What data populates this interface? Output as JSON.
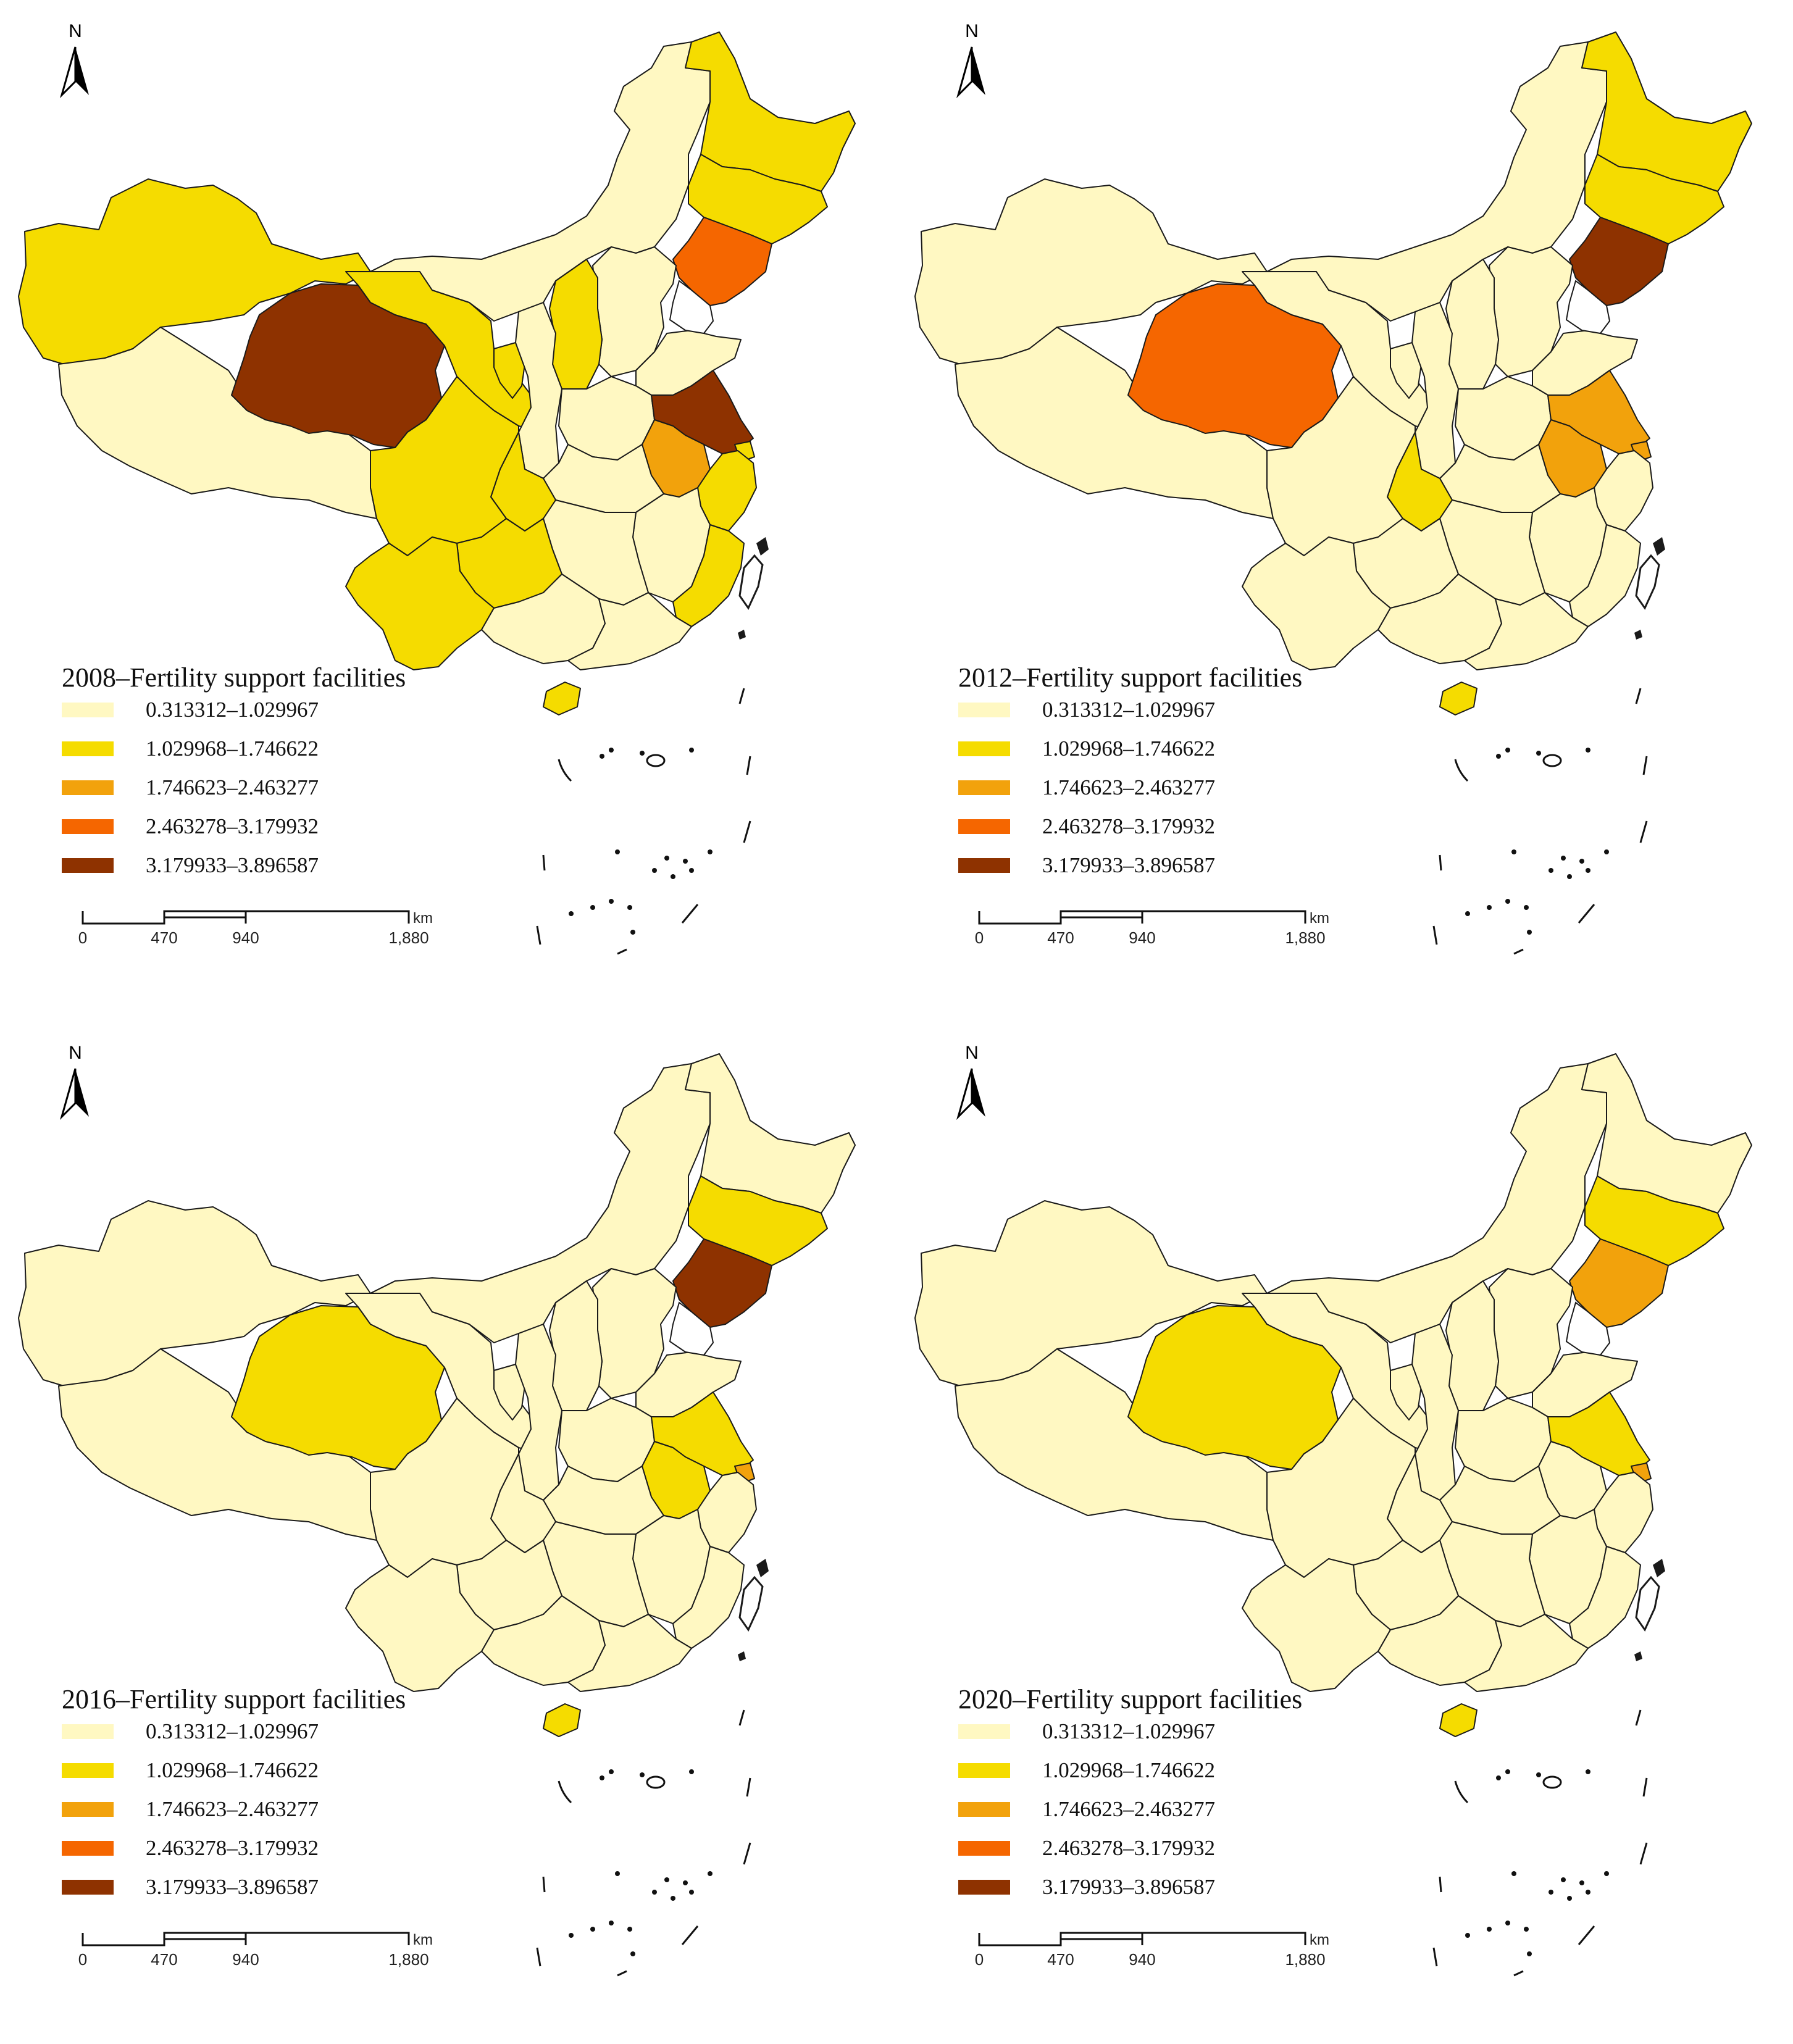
{
  "panels": [
    {
      "title": "2008–Fertility support facilities",
      "classes": {
        "xj": 1,
        "xz": 0,
        "qh": 4,
        "gs": 1,
        "nmg": 0,
        "hlj": 1,
        "jl": 1,
        "ln": 3,
        "sc": 1,
        "yn": 1,
        "cq": 1,
        "gz": 1,
        "sd": 0,
        "js": 4,
        "ah": 2,
        "zj": 1,
        "fj": 1,
        "gd": 0,
        "gx": 0,
        "hn": 1,
        "hb": 0,
        "hun": 0,
        "jx": 0,
        "sx": 1,
        "sn": 0,
        "nx": 1,
        "hen": 0,
        "heb": 0,
        "bj": 1,
        "tj": 0,
        "sh": 1
      }
    },
    {
      "title": "2012–Fertility support facilities",
      "classes": {
        "xj": 0,
        "xz": 0,
        "qh": 3,
        "gs": 0,
        "nmg": 0,
        "hlj": 1,
        "jl": 1,
        "ln": 4,
        "sc": 0,
        "yn": 0,
        "cq": 1,
        "gz": 0,
        "sd": 0,
        "js": 2,
        "ah": 2,
        "zj": 0,
        "fj": 0,
        "gd": 0,
        "gx": 0,
        "hn": 1,
        "hb": 0,
        "hun": 0,
        "jx": 0,
        "sx": 0,
        "sn": 0,
        "nx": 0,
        "hen": 0,
        "heb": 0,
        "bj": 1,
        "tj": 2,
        "sh": 2
      }
    },
    {
      "title": "2016–Fertility support facilities",
      "classes": {
        "xj": 0,
        "xz": 0,
        "qh": 1,
        "gs": 0,
        "nmg": 0,
        "hlj": 0,
        "jl": 1,
        "ln": 4,
        "sc": 0,
        "yn": 0,
        "cq": 0,
        "gz": 0,
        "sd": 0,
        "js": 1,
        "ah": 1,
        "zj": 0,
        "fj": 0,
        "gd": 0,
        "gx": 0,
        "hn": 1,
        "hb": 0,
        "hun": 0,
        "jx": 0,
        "sx": 0,
        "sn": 0,
        "nx": 0,
        "hen": 0,
        "heb": 0,
        "bj": 1,
        "tj": 0,
        "sh": 2
      }
    },
    {
      "title": "2020–Fertility support facilities",
      "classes": {
        "xj": 0,
        "xz": 0,
        "qh": 1,
        "gs": 0,
        "nmg": 0,
        "hlj": 0,
        "jl": 1,
        "ln": 2,
        "sc": 0,
        "yn": 0,
        "cq": 0,
        "gz": 0,
        "sd": 0,
        "js": 1,
        "ah": 0,
        "zj": 0,
        "fj": 0,
        "gd": 0,
        "gx": 0,
        "hn": 1,
        "hb": 0,
        "hun": 0,
        "jx": 0,
        "sx": 0,
        "sn": 0,
        "nx": 0,
        "hen": 0,
        "heb": 0,
        "bj": 1,
        "tj": 1,
        "sh": 2
      }
    }
  ],
  "legend": [
    {
      "label": "0.313312–1.029967",
      "color": "#FFF8C2"
    },
    {
      "label": "1.029968–1.746622",
      "color": "#F5DC00"
    },
    {
      "label": "1.746623–2.463277",
      "color": "#F2A20C"
    },
    {
      "label": "2.463278–3.179932",
      "color": "#F56600"
    },
    {
      "label": "3.179933–3.896587",
      "color": "#8E3200"
    }
  ],
  "north_label": "N",
  "scale": {
    "ticks": [
      "0",
      "470",
      "940",
      "1,880"
    ],
    "unit": "km"
  }
}
